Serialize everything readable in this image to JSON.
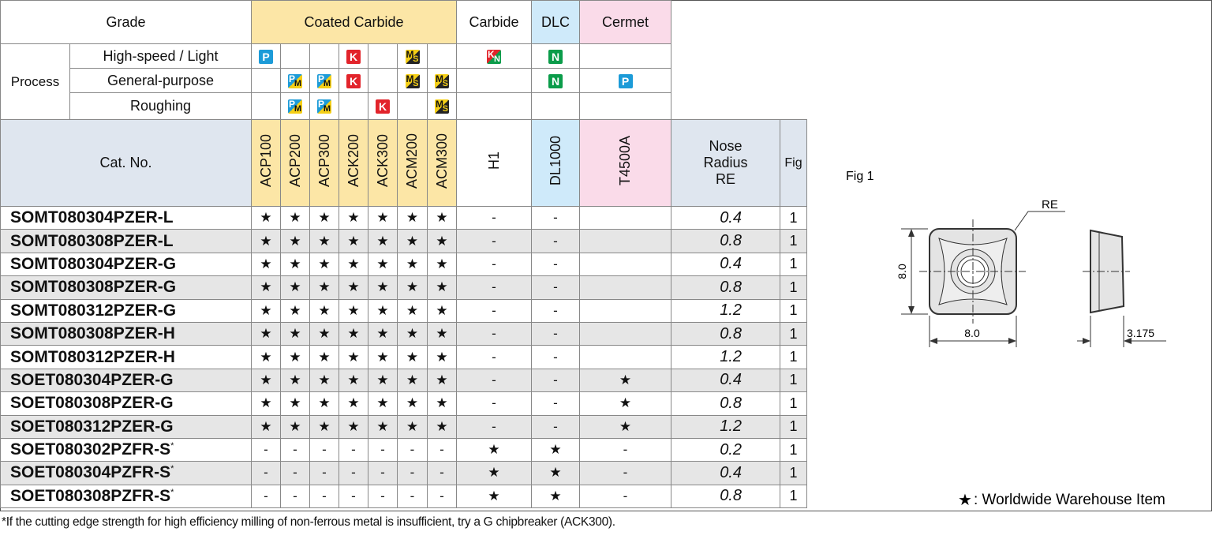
{
  "header": {
    "grade": "Grade",
    "groups": [
      "Coated Carbide",
      "Carbide",
      "DLC",
      "Cermet"
    ],
    "process": "Process",
    "processes": [
      {
        "label": "High-speed / Light",
        "badges": [
          [
            "P"
          ],
          null,
          null,
          [
            "K"
          ],
          null,
          [
            "M",
            "S"
          ],
          null,
          [
            "K",
            "N"
          ],
          [
            "N"
          ],
          null
        ]
      },
      {
        "label": "General-purpose",
        "badges": [
          null,
          [
            "P",
            "M"
          ],
          [
            "P",
            "M"
          ],
          [
            "K"
          ],
          null,
          [
            "M",
            "S"
          ],
          [
            "M",
            "S"
          ],
          null,
          [
            "N"
          ],
          [
            "P"
          ]
        ]
      },
      {
        "label": "Roughing",
        "badges": [
          null,
          [
            "P",
            "M"
          ],
          [
            "P",
            "M"
          ],
          null,
          [
            "K"
          ],
          null,
          [
            "M",
            "S"
          ],
          null,
          null,
          null
        ]
      }
    ],
    "cat_no": "Cat. No.",
    "grades": [
      "ACP100",
      "ACP200",
      "ACP300",
      "ACK200",
      "ACK300",
      "ACM200",
      "ACM300",
      "H1",
      "DL1000",
      "T4500A"
    ],
    "nose_radius": [
      "Nose",
      "Radius",
      "RE"
    ],
    "fig": "Fig"
  },
  "rows": [
    {
      "cat": "SOMT080304PZER-L",
      "marks": [
        "★",
        "★",
        "★",
        "★",
        "★",
        "★",
        "★",
        "-",
        "-",
        null
      ],
      "nose": 0.4,
      "fig": 1
    },
    {
      "cat": "SOMT080308PZER-L",
      "marks": [
        "★",
        "★",
        "★",
        "★",
        "★",
        "★",
        "★",
        "-",
        "-",
        null
      ],
      "nose": 0.8,
      "fig": 1
    },
    {
      "cat": "SOMT080304PZER-G",
      "marks": [
        "★",
        "★",
        "★",
        "★",
        "★",
        "★",
        "★",
        "-",
        "-",
        null
      ],
      "nose": 0.4,
      "fig": 1
    },
    {
      "cat": "SOMT080308PZER-G",
      "marks": [
        "★",
        "★",
        "★",
        "★",
        "★",
        "★",
        "★",
        "-",
        "-",
        null
      ],
      "nose": 0.8,
      "fig": 1
    },
    {
      "cat": "SOMT080312PZER-G",
      "marks": [
        "★",
        "★",
        "★",
        "★",
        "★",
        "★",
        "★",
        "-",
        "-",
        null
      ],
      "nose": 1.2,
      "fig": 1
    },
    {
      "cat": "SOMT080308PZER-H",
      "marks": [
        "★",
        "★",
        "★",
        "★",
        "★",
        "★",
        "★",
        "-",
        "-",
        null
      ],
      "nose": 0.8,
      "fig": 1
    },
    {
      "cat": "SOMT080312PZER-H",
      "marks": [
        "★",
        "★",
        "★",
        "★",
        "★",
        "★",
        "★",
        "-",
        "-",
        null
      ],
      "nose": 1.2,
      "fig": 1
    },
    {
      "cat": "SOET080304PZER-G",
      "marks": [
        "★",
        "★",
        "★",
        "★",
        "★",
        "★",
        "★",
        "-",
        "-",
        "★"
      ],
      "nose": 0.4,
      "fig": 1
    },
    {
      "cat": "SOET080308PZER-G",
      "marks": [
        "★",
        "★",
        "★",
        "★",
        "★",
        "★",
        "★",
        "-",
        "-",
        "★"
      ],
      "nose": 0.8,
      "fig": 1
    },
    {
      "cat": "SOET080312PZER-G",
      "marks": [
        "★",
        "★",
        "★",
        "★",
        "★",
        "★",
        "★",
        "-",
        "-",
        "★"
      ],
      "nose": 1.2,
      "fig": 1
    },
    {
      "cat": "SOET080302PZFR-S",
      "note": "*",
      "marks": [
        "-",
        "-",
        "-",
        "-",
        "-",
        "-",
        "-",
        "★",
        "★",
        "-"
      ],
      "nose": 0.2,
      "fig": 1
    },
    {
      "cat": "SOET080304PZFR-S",
      "note": "*",
      "marks": [
        "-",
        "-",
        "-",
        "-",
        "-",
        "-",
        "-",
        "★",
        "★",
        "-"
      ],
      "nose": 0.4,
      "fig": 1
    },
    {
      "cat": "SOET080308PZFR-S",
      "note": "*",
      "marks": [
        "-",
        "-",
        "-",
        "-",
        "-",
        "-",
        "-",
        "★",
        "★",
        "-"
      ],
      "nose": 0.8,
      "fig": 1
    }
  ],
  "fig1": {
    "label": "Fig 1",
    "re": "RE",
    "width": "8.0",
    "height": "8.0",
    "thickness": "3.175"
  },
  "legend": {
    "symbol": "★",
    "text": ": Worldwide Warehouse Item"
  },
  "footnote": "*If the cutting edge strength for high efficiency milling of non-ferrous metal is insufficient, try a G chipbreaker (ACK300)."
}
